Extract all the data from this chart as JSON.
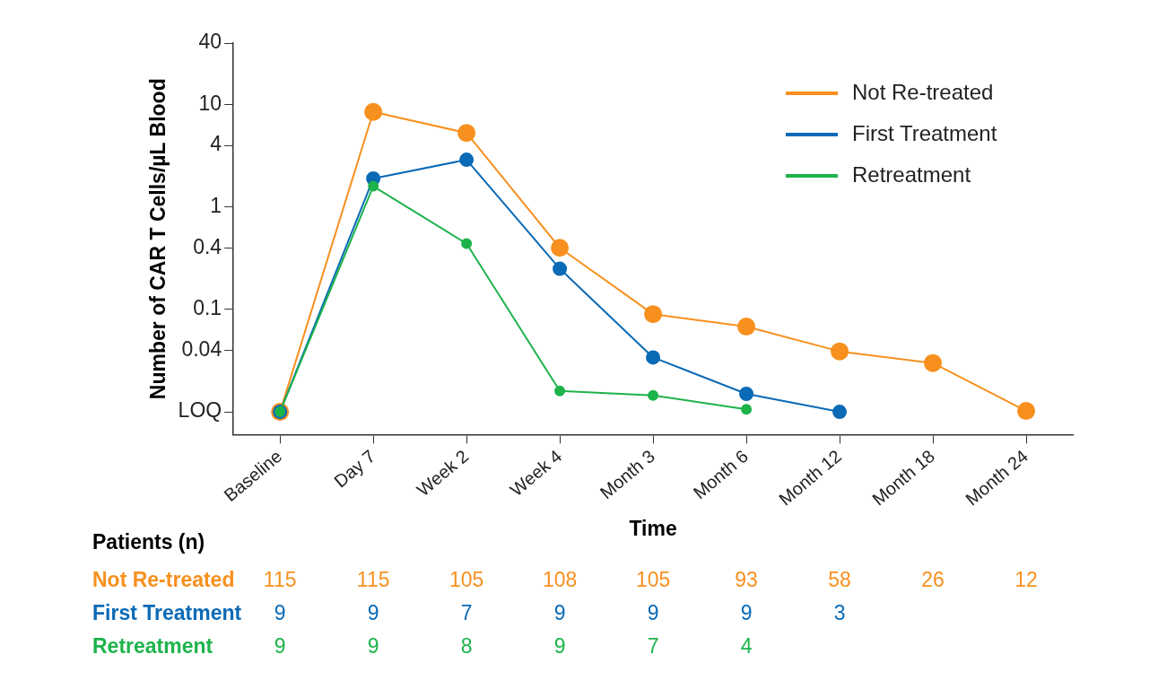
{
  "chart_data": {
    "type": "line",
    "xlabel": "Time",
    "ylabel": "Number of CAR T Cells/µL Blood",
    "categories": [
      "Baseline",
      "Day 7",
      "Week 2",
      "Week 4",
      "Month 3",
      "Month 6",
      "Month 12",
      "Month 18",
      "Month 24"
    ],
    "series": [
      {
        "name": "Not Re-treated",
        "color": "#f7901e",
        "values": [
          0.01,
          8.5,
          5.3,
          0.4,
          0.09,
          0.068,
          0.039,
          0.03,
          0.0102
        ]
      },
      {
        "name": "First Treatment",
        "color": "#0a6ab6",
        "values": [
          0.01,
          1.9,
          2.9,
          0.25,
          0.034,
          0.015,
          0.01,
          null,
          null
        ]
      },
      {
        "name": "Retreatment",
        "color": "#1db34b",
        "values": [
          0.01,
          1.6,
          0.44,
          0.016,
          0.0145,
          0.0106,
          null,
          null,
          null
        ]
      }
    ],
    "log": true,
    "ylim": [
      0.006,
      40
    ],
    "yticks": [
      {
        "value": 0.01,
        "label": "LOQ"
      },
      0.04,
      0.1,
      0.4,
      1,
      4,
      10,
      40
    ],
    "grid": false,
    "legend": "top right",
    "marker": "circle",
    "line_style": "solid",
    "annotations": [
      "Patients (n)",
      "115 115 105 108 105 93 58 26 12",
      "9 9 7 9 9 9 3",
      "9 9 8 9 7 4"
    ]
  }
}
